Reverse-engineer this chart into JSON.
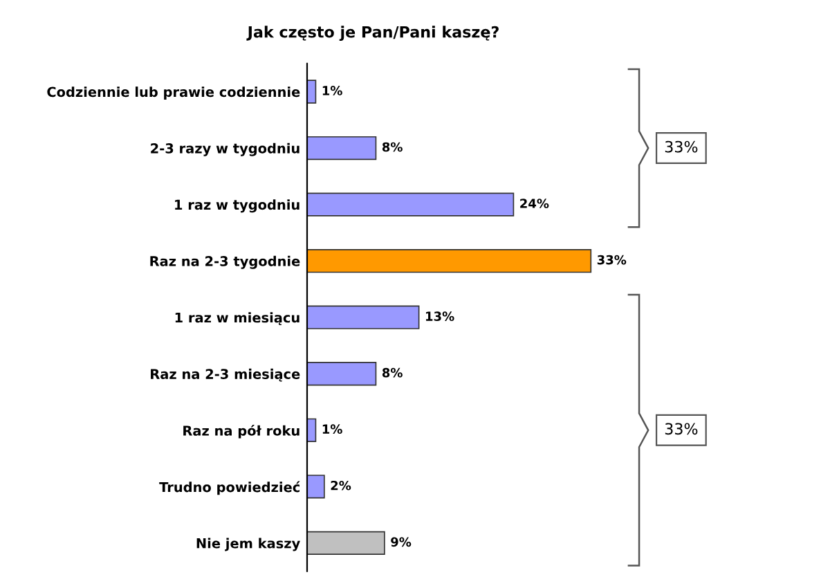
{
  "chart_data": {
    "type": "bar",
    "orientation": "horizontal",
    "title": "Jak często je Pan/Pani kaszę?",
    "categories": [
      "Codziennie lub prawie codziennie",
      "2-3 razy w tygodniu",
      "1 raz w tygodniu",
      "Raz na 2-3 tygodnie",
      "1 raz w miesiącu",
      "Raz na 2-3 miesiące",
      "Raz na pół roku",
      "Trudno powiedzieć",
      "Nie jem kaszy"
    ],
    "values": [
      1,
      8,
      24,
      33,
      13,
      8,
      1,
      2,
      9
    ],
    "value_labels": [
      "1%",
      "8%",
      "24%",
      "33%",
      "13%",
      "8%",
      "1%",
      "2%",
      "9%"
    ],
    "colors": [
      "#9999ff",
      "#9999ff",
      "#9999ff",
      "#ff9900",
      "#9999ff",
      "#9999ff",
      "#9999ff",
      "#9999ff",
      "#c0c0c0"
    ],
    "annotations": [
      "33%",
      "33%"
    ],
    "grid": false,
    "legend": false
  }
}
